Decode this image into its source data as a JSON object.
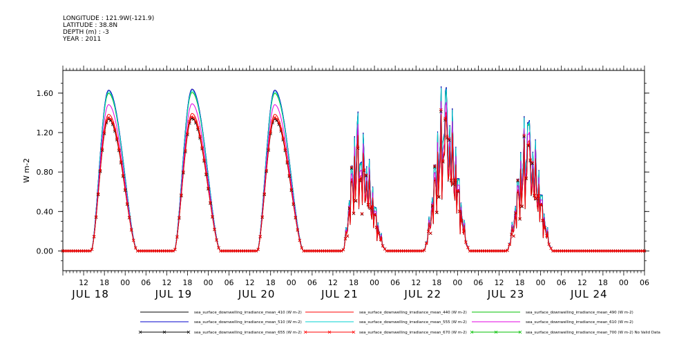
{
  "header": {
    "longitude": "LONGITUDE : 121.9W(-121.9)",
    "latitude": "LATITUDE : 38.8N",
    "depth": "DEPTH (m) : -3",
    "year": "YEAR : 2011"
  },
  "chart_data": {
    "type": "line",
    "ylabel": "W m-2",
    "ylim": [
      -0.2,
      1.83
    ],
    "yticks": [
      "0.00",
      "0.40",
      "0.80",
      "1.20",
      "1.60"
    ],
    "ytick_values": [
      0,
      0.4,
      0.8,
      1.2,
      1.6
    ],
    "x_hours_range": [
      6,
      174
    ],
    "hour_tick_labels": [
      "12",
      "18",
      "00",
      "06",
      "12",
      "18",
      "00",
      "06",
      "12",
      "18",
      "00",
      "06",
      "12",
      "18",
      "00",
      "06",
      "12",
      "18",
      "00",
      "06",
      "12",
      "18",
      "00",
      "06",
      "12",
      "18",
      "00",
      "06",
      "12"
    ],
    "date_labels": [
      "JUL 18",
      "JUL 19",
      "JUL 20",
      "JUL 21",
      "JUL 22",
      "JUL 23",
      "JUL 24"
    ],
    "days": [
      {
        "date": "JUL 18",
        "peak_hour": 19.2,
        "peak_410": 1.63
      },
      {
        "date": "JUL 19",
        "peak_hour": 19.3,
        "peak_410": 1.64
      },
      {
        "date": "JUL 20",
        "peak_hour": 19.2,
        "peak_410": 1.63
      },
      {
        "date": "JUL 21",
        "peak_hour": 19.0,
        "peak_410": 1.27
      },
      {
        "date": "JUL 22",
        "peak_hour": 20.5,
        "peak_410": 1.62
      },
      {
        "date": "JUL 23",
        "peak_hour": 20.3,
        "peak_410": 1.3
      }
    ],
    "series": [
      {
        "name": "sea_surface_downwelling_irradiance_mean_410 (W m-2)",
        "color": "#000000",
        "marker": "none",
        "scale": 1.0
      },
      {
        "name": "sea_surface_downwelling_irradiance_mean_440 (W m-2)",
        "color": "#ff0000",
        "marker": "none",
        "scale": 0.85
      },
      {
        "name": "sea_surface_downwelling_irradiance_mean_490 (W m-2)",
        "color": "#00c000",
        "marker": "none",
        "scale": 0.98
      },
      {
        "name": "sea_surface_downwelling_irradiance_mean_510 (W m-2)",
        "color": "#0000cc",
        "marker": "none",
        "scale": 1.0
      },
      {
        "name": "sea_surface_downwelling_irradiance_mean_555 (W m-2)",
        "color": "#00d0d0",
        "marker": "none",
        "scale": 0.99
      },
      {
        "name": "sea_surface_downwelling_irradiance_mean_610 (W m-2)",
        "color": "#e000e0",
        "marker": "none",
        "scale": 0.91
      },
      {
        "name": "sea_surface_downwelling_irradiance_mean_655 (W m-2)",
        "color": "#000000",
        "marker": "x",
        "scale": 0.82
      },
      {
        "name": "sea_surface_downwelling_irradiance_mean_670 (W m-2)",
        "color": "#ff0000",
        "marker": "x",
        "scale": 0.83
      },
      {
        "name": "sea_surface_downwelling_irradiance_mean_700 (W m-2) No Valid Data",
        "color": "#00c000",
        "marker": "x",
        "scale": 0
      }
    ]
  }
}
